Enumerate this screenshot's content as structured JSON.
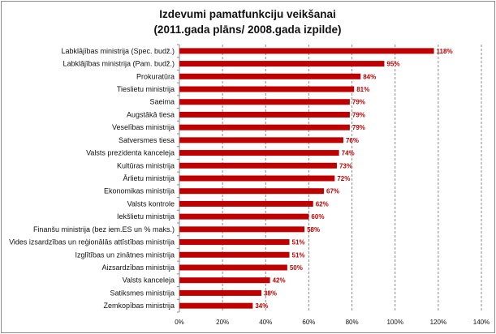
{
  "chart_data": {
    "type": "bar",
    "orientation": "horizontal",
    "title": [
      "Izdevumi pamatfunkciju veikšanai",
      "(2011.gada plāns/ 2008.gada izpilde)"
    ],
    "xlabel": "",
    "ylabel": "",
    "xlim": [
      0,
      140
    ],
    "grid": "vertical dashed",
    "legend": "none",
    "bar_color": "#c00000",
    "label_color": "#c00000",
    "ticks": [
      "0%",
      "20%",
      "40%",
      "60%",
      "80%",
      "100%",
      "120%",
      "140%"
    ],
    "categories": [
      "Labklājības ministrija (Spec. budž.)",
      "Labklājības ministrija (Pam. budž.)",
      "Prokuratūra",
      "Tieslietu ministrija",
      "Saeima",
      "Augstākā tiesa",
      "Veselības ministrija",
      "Satversmes tiesa",
      "Valsts prezidenta kanceleja",
      "Kultūras ministrija",
      "Ārlietu ministrija",
      "Ekonomikas ministrija",
      "Valsts kontrole",
      "Iekšlietu ministrija",
      "Finanšu ministrija (bez iem.ES un % maks.)",
      "Vides izsardzības un reģionālās attīstības ministrija",
      "Izglītības un zinātnes ministrija",
      "Aizsardzības ministrija",
      "Valsts kanceleja",
      "Satiksmes ministrija",
      "Zemkopības ministrija"
    ],
    "values": [
      118,
      95,
      84,
      81,
      79,
      79,
      79,
      76,
      74,
      73,
      72,
      67,
      62,
      60,
      58,
      51,
      51,
      50,
      42,
      38,
      34
    ],
    "labels": [
      "118%",
      "95%",
      "84%",
      "81%",
      "79%",
      "79%",
      "79%",
      "76%",
      "74%",
      "73%",
      "72%",
      "67%",
      "62%",
      "60%",
      "58%",
      "51%",
      "51%",
      "50%",
      "42%",
      "38%",
      "34%"
    ]
  }
}
